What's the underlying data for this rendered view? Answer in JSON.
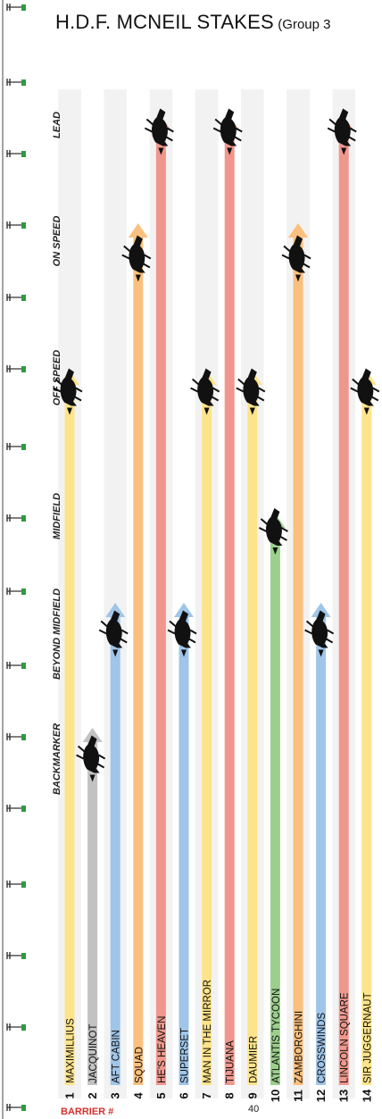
{
  "title": {
    "main": "H.D.F. MCNEIL STAKES",
    "sub": "(Group 3"
  },
  "footer": {
    "barrier_label": "BARRIER #",
    "page_number": "40"
  },
  "colors": {
    "backmarker": "#c2c2c2",
    "beyond_midfield": "#9fc5e8",
    "midfield": "#9ccf8c",
    "off_speed": "#fde48a",
    "on_speed": "#fbc07d",
    "lead": "#f0968c",
    "row_shade": "#f2f2f2",
    "horse": "#111111",
    "marker_green": "#2e9a43"
  },
  "chart_data": {
    "type": "bar",
    "title": "H.D.F. MCNEIL STAKES (Group 3",
    "categories": [
      "BACKMARKER",
      "BEYOND MIDFIELD",
      "MIDFIELD",
      "OFF SPEED",
      "ON SPEED",
      "LEAD"
    ],
    "runners": [
      {
        "barrier": "1",
        "name": "MAXIMILLIUS",
        "position": "OFF SPEED"
      },
      {
        "barrier": "2",
        "name": "JACQUINOT",
        "position": "BACKMARKER"
      },
      {
        "barrier": "3",
        "name": "AFT CABIN",
        "position": "BEYOND MIDFIELD"
      },
      {
        "barrier": "4",
        "name": "SQUAD",
        "position": "ON SPEED"
      },
      {
        "barrier": "5",
        "name": "HE'S HEAVEN",
        "position": "LEAD"
      },
      {
        "barrier": "6",
        "name": "SUPERSET",
        "position": "BEYOND MIDFIELD"
      },
      {
        "barrier": "7",
        "name": "MAN IN THE MIRROR",
        "position": "OFF SPEED"
      },
      {
        "barrier": "8",
        "name": "TIJUANA",
        "position": "LEAD"
      },
      {
        "barrier": "9",
        "name": "DAUMIER",
        "position": "OFF SPEED"
      },
      {
        "barrier": "10",
        "name": "ATLANTIS TYCOON",
        "position": "MIDFIELD"
      },
      {
        "barrier": "11",
        "name": "ZAMBORGHINI",
        "position": "ON SPEED"
      },
      {
        "barrier": "12",
        "name": "CROSSWINDS",
        "position": "BEYOND MIDFIELD"
      },
      {
        "barrier": "13",
        "name": "LINCOLN SQUARE",
        "position": "LEAD"
      },
      {
        "barrier": "14",
        "name": "SIR JUGGERNAUT",
        "position": "OFF SPEED"
      }
    ]
  }
}
